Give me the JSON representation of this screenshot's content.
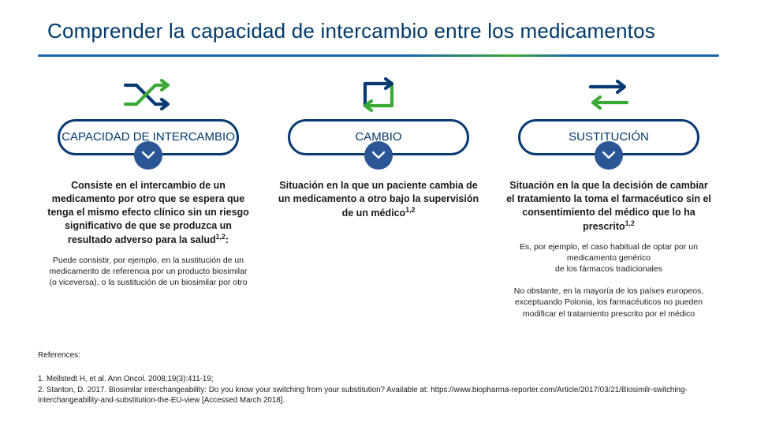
{
  "title": "Comprender la capacidad de intercambio entre los medicamentos",
  "styling": {
    "title_color": "#003a6b",
    "title_fontsize": 26,
    "divider_colors": [
      "#1c64a8",
      "#3ba935"
    ],
    "pill_border_color": "#0a3a72",
    "chevron_bg": "#2b5695",
    "icon_stroke_blue": "#083a72",
    "icon_stroke_green": "#3ba935",
    "body_color": "#1a1a1a",
    "main_fontsize": 12.5,
    "sub_fontsize": 10.5,
    "refs_fontsize": 9.8
  },
  "columns": [
    {
      "icon": "shuffle-icon",
      "pill_label": "CAPACIDAD DE INTERCAMBIO",
      "main_html": "Consiste en el intercambio de un medicamento por otro que se espera que tenga el mismo efecto clínico sin un riesgo significativo de que se produzca un resultado adverso para la salud<sup>1,2</sup>:",
      "sub1_html": "Puede consistir, por ejemplo, en la sustitución de un medicamento de referencia por un producto biosimilar (o viceversa), o la sustitución de un biosimilar por otro",
      "sub2_html": ""
    },
    {
      "icon": "loop-icon",
      "pill_label": "CAMBIO",
      "main_html": "Situación en la que un paciente cambia de un medicamento a otro bajo la supervisión de un médico<sup>1,2</sup>",
      "sub1_html": "",
      "sub2_html": ""
    },
    {
      "icon": "swap-icon",
      "pill_label": "SUSTITUCIÓN",
      "main_html": "Situación en la que la decisión de cambiar el tratamiento la toma el farmacéutico sin el consentimiento del médico que lo ha prescrito<sup>1,2</sup>",
      "sub1_html": "Es, por ejemplo, el caso habitual de optar por un medicamento genérico<br>de los fármacos tradicionales",
      "sub2_html": "No obstante, en la mayoría de los países europeos, exceptuando Polonia, los farmacéuticos no pueden modificar el tratamiento prescrito por el médico"
    }
  ],
  "references": {
    "label": "References:",
    "body_html": "1. Mellstedt H, et al. Ann Oncol. 2008;19(3):411-19;<br>2. Stanton, D. 2017. Biosimilar interchangeability: Do you know your switching from your substitution? Available at: https://www.biopharma-reporter.com/Article/2017/03/21/Biosimilr-switching-interchangeability-and-substitution-the-EU-view [Accessed March 2018]."
  }
}
